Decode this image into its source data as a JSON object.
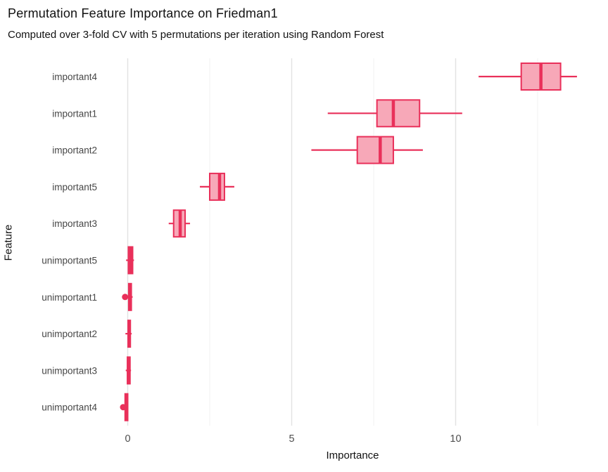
{
  "chart_data": {
    "type": "boxplot",
    "orientation": "horizontal",
    "title": "Permutation Feature Importance on Friedman1",
    "subtitle": "Computed over 3-fold CV with 5 permutations per iteration using Random Forest",
    "xlabel": "Importance",
    "ylabel": "Feature",
    "xticks": [
      0,
      5,
      10
    ],
    "xlim": [
      -0.8,
      14.5
    ],
    "grid": {
      "major_x": [
        0,
        5,
        10
      ],
      "minor_x": [
        2.5,
        7.5,
        12.5
      ],
      "horizontal": false
    },
    "legend": "none",
    "colors": {
      "box_fill": "#F7A8B8",
      "box_stroke": "#E9305A",
      "grid_major": "#E2E2E2",
      "grid_minor": "#F1F1F1",
      "tick_text": "#4D4D4D",
      "category_text": "#474747",
      "title_text": "#111111",
      "background": "#FFFFFF"
    },
    "categories": [
      "important4",
      "important1",
      "important2",
      "important5",
      "important3",
      "unimportant5",
      "unimportant1",
      "unimportant2",
      "unimportant3",
      "unimportant4"
    ],
    "boxes": [
      {
        "feature": "important4",
        "whisker_low": 10.7,
        "q1": 12.0,
        "median": 12.6,
        "q3": 13.2,
        "whisker_high": 13.7,
        "outliers": []
      },
      {
        "feature": "important1",
        "whisker_low": 6.1,
        "q1": 7.6,
        "median": 8.1,
        "q3": 8.9,
        "whisker_high": 10.2,
        "outliers": []
      },
      {
        "feature": "important2",
        "whisker_low": 5.6,
        "q1": 7.0,
        "median": 7.7,
        "q3": 8.1,
        "whisker_high": 9.0,
        "outliers": []
      },
      {
        "feature": "important5",
        "whisker_low": 2.2,
        "q1": 2.5,
        "median": 2.8,
        "q3": 2.95,
        "whisker_high": 3.25,
        "outliers": []
      },
      {
        "feature": "important3",
        "whisker_low": 1.25,
        "q1": 1.4,
        "median": 1.6,
        "q3": 1.75,
        "whisker_high": 1.9,
        "outliers": []
      },
      {
        "feature": "unimportant5",
        "whisker_low": -0.05,
        "q1": 0.02,
        "median": 0.09,
        "q3": 0.15,
        "whisker_high": 0.19,
        "outliers": []
      },
      {
        "feature": "unimportant1",
        "whisker_low": -0.04,
        "q1": 0.03,
        "median": 0.07,
        "q3": 0.11,
        "whisker_high": 0.15,
        "outliers": [
          -0.08
        ]
      },
      {
        "feature": "unimportant2",
        "whisker_low": -0.07,
        "q1": 0.01,
        "median": 0.04,
        "q3": 0.08,
        "whisker_high": 0.12,
        "outliers": []
      },
      {
        "feature": "unimportant3",
        "whisker_low": -0.06,
        "q1": -0.01,
        "median": 0.03,
        "q3": 0.07,
        "whisker_high": 0.1,
        "outliers": []
      },
      {
        "feature": "unimportant4",
        "whisker_low": -0.1,
        "q1": -0.08,
        "median": -0.04,
        "q3": 0.0,
        "whisker_high": 0.02,
        "outliers": [
          -0.14
        ]
      }
    ]
  }
}
